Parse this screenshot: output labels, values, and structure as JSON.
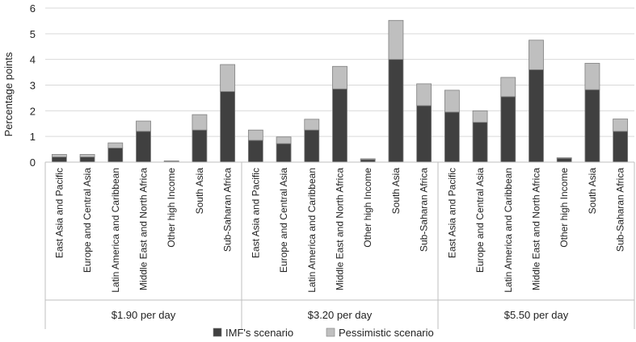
{
  "chart_data": {
    "type": "bar",
    "stacked": true,
    "title": "",
    "xlabel": "",
    "ylabel": "Percentage points",
    "ylim": [
      0,
      6
    ],
    "yticks": [
      "0",
      "1",
      "2",
      "3",
      "4",
      "5",
      "6"
    ],
    "grid": true,
    "legend_position": "bottom",
    "groups": [
      {
        "label": "$1.90 per day",
        "categories": [
          "East Asia and Pacific",
          "Europe and Central Asia",
          "Latin America and Caribbean",
          "Middle East and North Africa",
          "Other high Income",
          "South Asia",
          "Sub-Saharan Africa"
        ],
        "imf": [
          0.2,
          0.2,
          0.55,
          1.2,
          0.02,
          1.25,
          2.75
        ],
        "pessimistic": [
          0.1,
          0.1,
          0.2,
          0.4,
          0.03,
          0.6,
          1.05
        ]
      },
      {
        "label": "$3.20 per day",
        "categories": [
          "East Asia and Pacific",
          "Europe and Central Asia",
          "Latin America and Caribbean",
          "Middle East and North Africa",
          "Other high Income",
          "South Asia",
          "Sub-Saharan Africa"
        ],
        "imf": [
          0.85,
          0.72,
          1.25,
          2.85,
          0.1,
          4.0,
          2.2
        ],
        "pessimistic": [
          0.4,
          0.26,
          0.42,
          0.88,
          0.03,
          1.52,
          0.85
        ]
      },
      {
        "label": "$5.50 per day",
        "categories": [
          "East Asia and Pacific",
          "Europe and Central Asia",
          "Latin America and Caribbean",
          "Middle East and North Africa",
          "Other high Income",
          "South Asia",
          "Sub-Saharan Africa"
        ],
        "imf": [
          1.95,
          1.55,
          2.55,
          3.6,
          0.15,
          2.82,
          1.2
        ],
        "pessimistic": [
          0.85,
          0.45,
          0.75,
          1.15,
          0.02,
          1.03,
          0.48
        ]
      }
    ],
    "series": [
      {
        "name": "IMF's scenario",
        "color": "#404040"
      },
      {
        "name": "Pessimistic scenario",
        "color": "#bfbfbf"
      }
    ]
  }
}
